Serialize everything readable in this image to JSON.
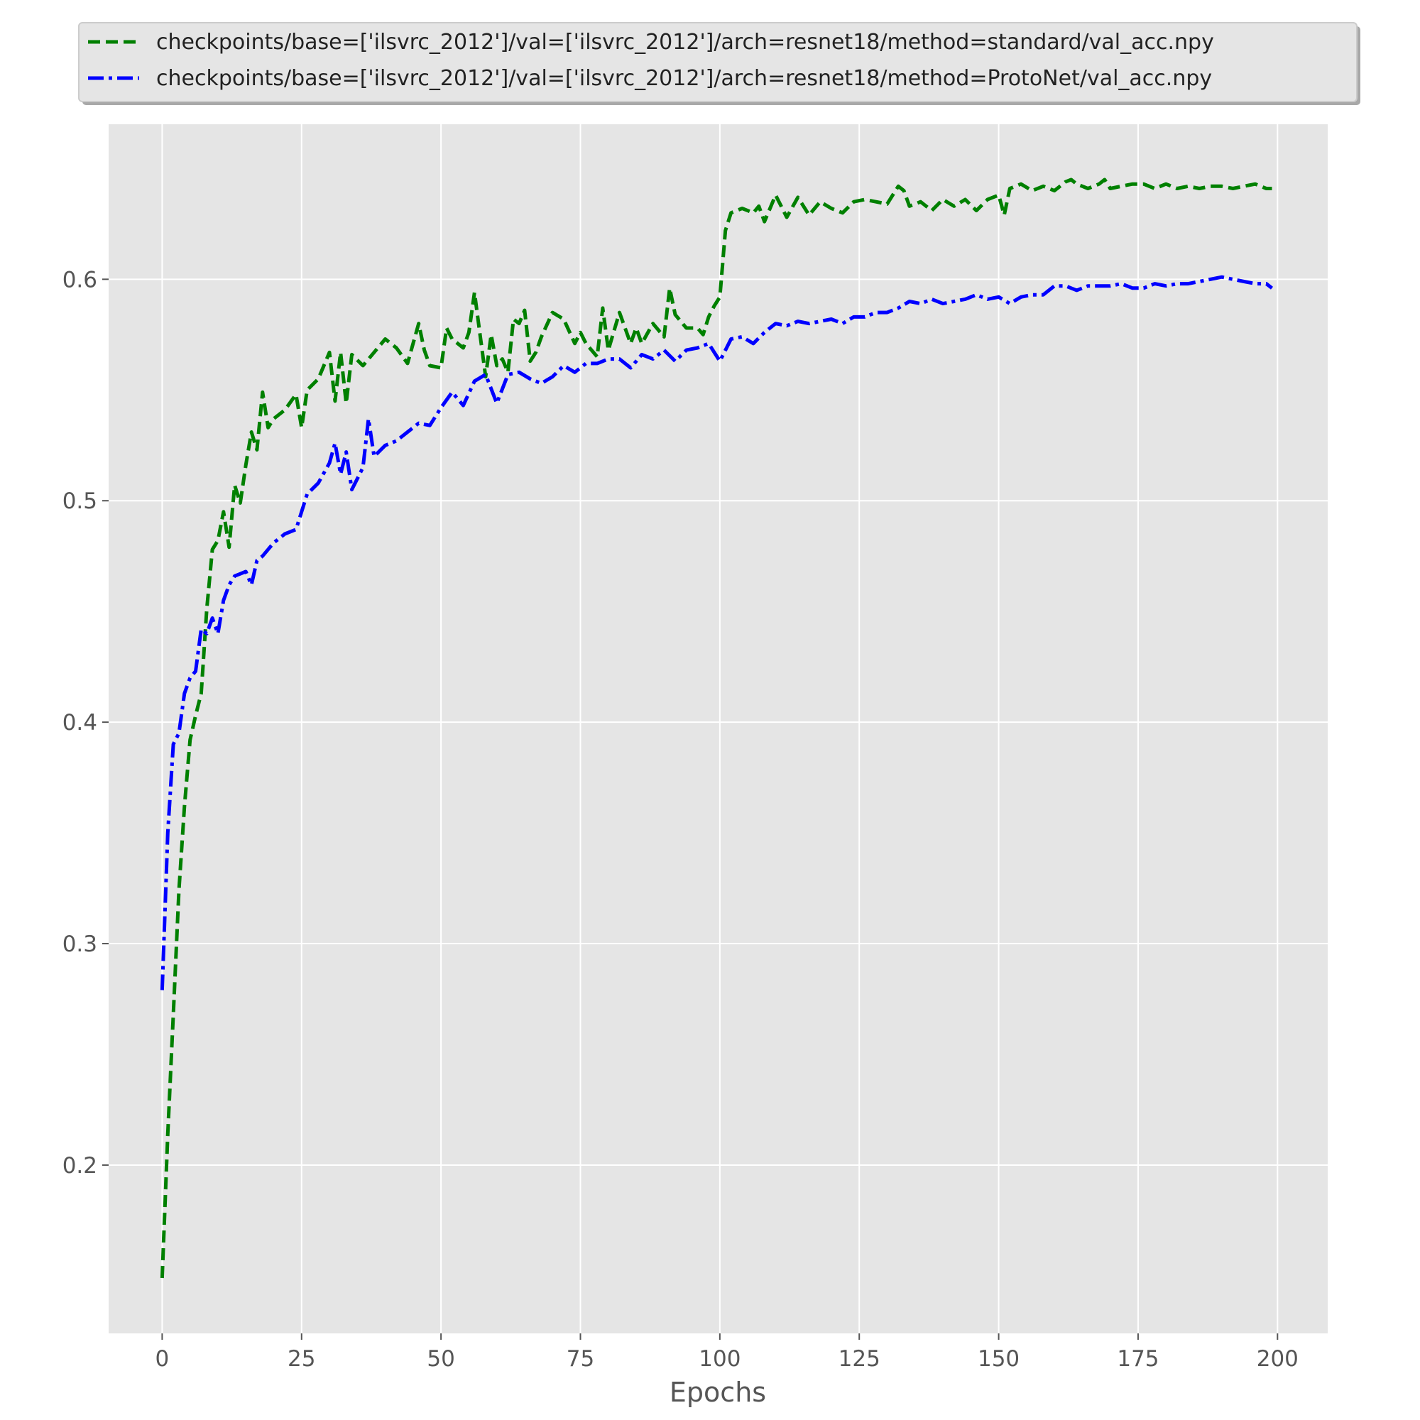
{
  "chart_data": {
    "type": "line",
    "title": "",
    "xlabel": "Epochs",
    "ylabel": "",
    "xlim": [
      -9.6,
      209
    ],
    "ylim": [
      0.124,
      0.67
    ],
    "xticks": [
      0,
      25,
      50,
      75,
      100,
      125,
      150,
      175,
      200
    ],
    "yticks": [
      0.2,
      0.3,
      0.4,
      0.5,
      0.6
    ],
    "grid": true,
    "legend_position": "top",
    "series": [
      {
        "name": "checkpoints/base=['ilsvrc_2012']/val=['ilsvrc_2012']/arch=resnet18/method=standard/val_acc.npy",
        "color": "#008000",
        "dash": "dashed",
        "x": [
          0,
          1,
          2,
          3,
          4,
          5,
          6,
          7,
          8,
          9,
          10,
          11,
          12,
          13,
          14,
          15,
          16,
          17,
          18,
          19,
          20,
          22,
          24,
          25,
          26,
          28,
          30,
          31,
          32,
          33,
          34,
          36,
          38,
          40,
          42,
          44,
          46,
          47,
          48,
          50,
          51,
          52,
          54,
          55,
          56,
          57,
          58,
          59,
          60,
          61,
          62,
          63,
          64,
          65,
          66,
          67,
          68,
          70,
          72,
          74,
          75,
          76,
          78,
          79,
          80,
          82,
          84,
          85,
          86,
          88,
          90,
          91,
          92,
          94,
          96,
          97,
          98,
          99,
          100,
          101,
          102,
          104,
          106,
          107,
          108,
          110,
          112,
          114,
          116,
          118,
          120,
          122,
          124,
          126,
          128,
          130,
          132,
          133,
          134,
          136,
          138,
          140,
          142,
          144,
          146,
          148,
          150,
          151,
          152,
          154,
          156,
          158,
          160,
          162,
          163,
          164,
          166,
          168,
          169,
          170,
          172,
          174,
          176,
          178,
          180,
          182,
          184,
          186,
          188,
          190,
          192,
          194,
          196,
          198,
          199
        ],
        "y": [
          0.149,
          0.214,
          0.268,
          0.324,
          0.362,
          0.392,
          0.403,
          0.413,
          0.451,
          0.478,
          0.482,
          0.495,
          0.479,
          0.507,
          0.499,
          0.516,
          0.531,
          0.523,
          0.549,
          0.533,
          0.537,
          0.541,
          0.548,
          0.533,
          0.55,
          0.555,
          0.567,
          0.545,
          0.567,
          0.544,
          0.566,
          0.561,
          0.567,
          0.573,
          0.569,
          0.562,
          0.58,
          0.568,
          0.561,
          0.56,
          0.578,
          0.573,
          0.569,
          0.576,
          0.594,
          0.575,
          0.556,
          0.575,
          0.561,
          0.564,
          0.558,
          0.582,
          0.58,
          0.586,
          0.563,
          0.567,
          0.574,
          0.585,
          0.582,
          0.571,
          0.576,
          0.571,
          0.565,
          0.587,
          0.568,
          0.585,
          0.571,
          0.578,
          0.571,
          0.58,
          0.574,
          0.596,
          0.584,
          0.578,
          0.578,
          0.575,
          0.583,
          0.588,
          0.592,
          0.622,
          0.63,
          0.632,
          0.63,
          0.633,
          0.626,
          0.638,
          0.628,
          0.637,
          0.629,
          0.635,
          0.632,
          0.63,
          0.635,
          0.636,
          0.635,
          0.634,
          0.642,
          0.64,
          0.633,
          0.635,
          0.631,
          0.636,
          0.633,
          0.636,
          0.631,
          0.636,
          0.638,
          0.629,
          0.641,
          0.643,
          0.64,
          0.642,
          0.64,
          0.644,
          0.645,
          0.643,
          0.641,
          0.643,
          0.645,
          0.641,
          0.642,
          0.643,
          0.643,
          0.641,
          0.643,
          0.641,
          0.642,
          0.641,
          0.642,
          0.642,
          0.641,
          0.642,
          0.643,
          0.641,
          0.641
        ]
      },
      {
        "name": "checkpoints/base=['ilsvrc_2012']/val=['ilsvrc_2012']/arch=resnet18/method=ProtoNet/val_acc.npy",
        "color": "#0000ff",
        "dash": "dashdot",
        "x": [
          0,
          1,
          2,
          3,
          4,
          5,
          6,
          7,
          8,
          9,
          10,
          11,
          12,
          13,
          14,
          15,
          16,
          17,
          18,
          20,
          22,
          24,
          26,
          28,
          30,
          31,
          32,
          33,
          34,
          36,
          37,
          38,
          40,
          42,
          44,
          46,
          48,
          50,
          52,
          54,
          56,
          58,
          60,
          62,
          64,
          66,
          68,
          70,
          72,
          74,
          76,
          78,
          80,
          82,
          84,
          86,
          88,
          90,
          92,
          94,
          96,
          98,
          100,
          102,
          104,
          106,
          108,
          110,
          112,
          114,
          116,
          118,
          120,
          122,
          124,
          126,
          128,
          130,
          132,
          134,
          136,
          138,
          140,
          142,
          144,
          146,
          148,
          150,
          152,
          154,
          156,
          158,
          160,
          162,
          164,
          166,
          168,
          170,
          172,
          174,
          176,
          178,
          180,
          182,
          184,
          186,
          188,
          190,
          192,
          194,
          196,
          198,
          199
        ],
        "y": [
          0.279,
          0.35,
          0.39,
          0.395,
          0.413,
          0.42,
          0.423,
          0.442,
          0.44,
          0.447,
          0.44,
          0.455,
          0.462,
          0.466,
          0.467,
          0.468,
          0.462,
          0.473,
          0.475,
          0.481,
          0.485,
          0.487,
          0.503,
          0.508,
          0.517,
          0.526,
          0.512,
          0.522,
          0.505,
          0.515,
          0.537,
          0.52,
          0.525,
          0.527,
          0.531,
          0.535,
          0.534,
          0.542,
          0.549,
          0.543,
          0.554,
          0.557,
          0.544,
          0.557,
          0.558,
          0.555,
          0.553,
          0.556,
          0.561,
          0.558,
          0.562,
          0.562,
          0.564,
          0.564,
          0.56,
          0.566,
          0.564,
          0.568,
          0.563,
          0.568,
          0.569,
          0.571,
          0.563,
          0.573,
          0.574,
          0.571,
          0.576,
          0.58,
          0.579,
          0.581,
          0.58,
          0.581,
          0.582,
          0.58,
          0.583,
          0.583,
          0.585,
          0.585,
          0.587,
          0.59,
          0.589,
          0.591,
          0.589,
          0.59,
          0.591,
          0.593,
          0.591,
          0.592,
          0.589,
          0.592,
          0.593,
          0.593,
          0.597,
          0.597,
          0.595,
          0.597,
          0.597,
          0.597,
          0.598,
          0.596,
          0.596,
          0.598,
          0.597,
          0.598,
          0.598,
          0.599,
          0.6,
          0.601,
          0.6,
          0.599,
          0.598,
          0.598,
          0.596
        ]
      }
    ]
  }
}
